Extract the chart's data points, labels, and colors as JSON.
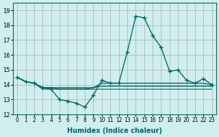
{
  "xlabel": "Humidex (Indice chaleur)",
  "x": [
    0,
    1,
    2,
    3,
    4,
    5,
    6,
    7,
    8,
    9,
    10,
    11,
    12,
    13,
    14,
    15,
    16,
    17,
    18,
    19,
    20,
    21,
    22,
    23
  ],
  "line1": [
    14.5,
    14.2,
    14.1,
    13.8,
    13.7,
    13.0,
    12.9,
    12.75,
    12.5,
    13.3,
    14.3,
    14.1,
    14.1,
    16.2,
    18.6,
    18.5,
    17.3,
    16.5,
    14.9,
    15.0,
    14.3,
    14.1,
    14.4,
    14.0
  ],
  "line2": [
    14.5,
    14.2,
    14.1,
    13.8,
    13.8,
    13.7,
    13.7,
    13.7,
    13.7,
    13.8,
    14.1,
    14.1,
    14.1,
    14.1,
    14.1,
    14.1,
    14.1,
    14.1,
    14.1,
    14.1,
    14.1,
    14.1,
    14.1,
    14.0
  ],
  "line3": [
    14.5,
    14.2,
    14.1,
    13.8,
    13.8,
    13.8,
    13.8,
    13.8,
    13.8,
    13.8,
    13.9,
    13.9,
    13.9,
    13.9,
    13.9,
    13.9,
    13.9,
    13.9,
    13.9,
    13.9,
    13.9,
    13.9,
    13.9,
    13.9
  ],
  "line4": [
    14.5,
    14.2,
    14.1,
    13.7,
    13.7,
    13.7,
    13.7,
    13.7,
    13.7,
    13.7,
    13.7,
    13.7,
    13.7,
    13.7,
    13.7,
    13.7,
    13.7,
    13.7,
    13.7,
    13.7,
    13.7,
    13.7,
    13.7,
    13.7
  ],
  "line_color": "#006666",
  "bg_color": "#d0eeee",
  "grid_color": "#aaaaaa",
  "ylim": [
    12,
    19.5
  ],
  "yticks": [
    12,
    13,
    14,
    15,
    16,
    17,
    18,
    19
  ],
  "marker": "+",
  "markersize": 5
}
